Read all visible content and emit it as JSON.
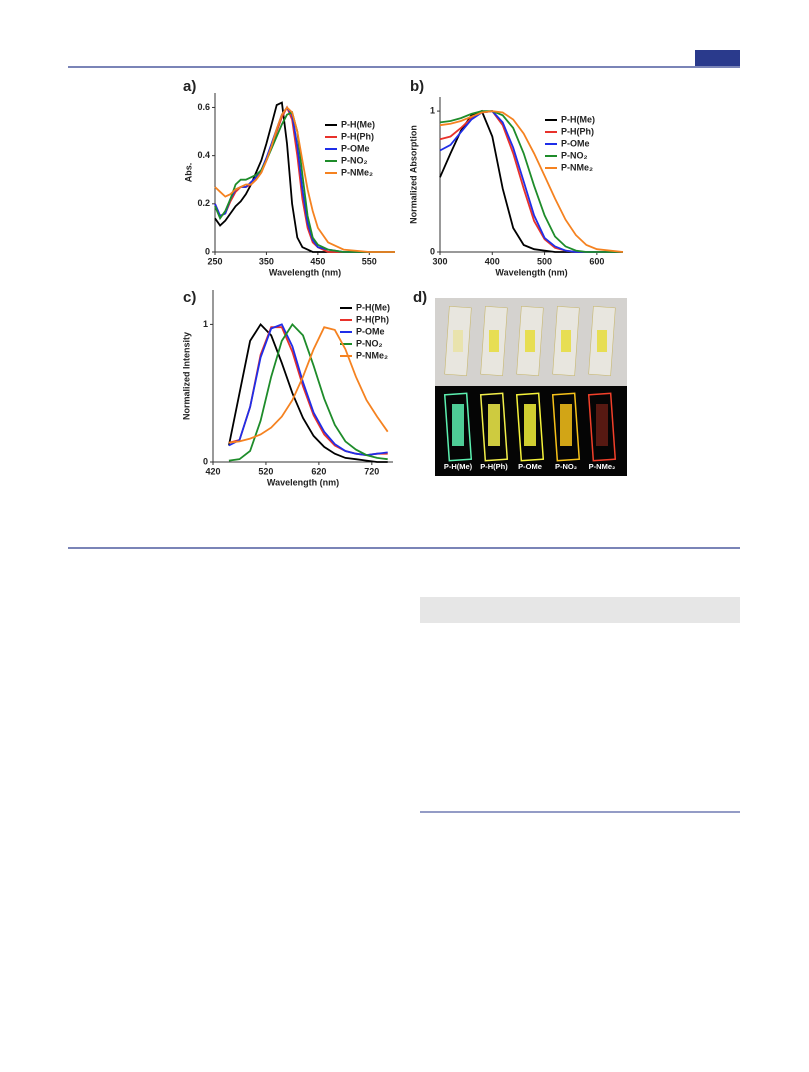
{
  "figure": {
    "panel_labels": [
      "a)",
      "b)",
      "c)",
      "d)"
    ],
    "photo_labels": [
      "P-H(Me)",
      "P-H(Ph)",
      "P-OMe",
      "P-NO₂",
      "P-NMe₂"
    ]
  },
  "chart_data": [
    {
      "type": "line",
      "xlabel": "Wavelength (nm)",
      "ylabel": "Abs.",
      "x": [
        250,
        260,
        270,
        280,
        290,
        300,
        310,
        320,
        330,
        340,
        350,
        360,
        370,
        380,
        390,
        400,
        410,
        420,
        430,
        440,
        450,
        470,
        500,
        550,
        600
      ],
      "xlim": [
        250,
        600
      ],
      "xticks": [
        250,
        350,
        450,
        550
      ],
      "ylim": [
        0,
        0.66
      ],
      "yticks": [
        0,
        0.2,
        0.4,
        0.6
      ],
      "series": [
        {
          "name": "P-H(Me)",
          "color": "#000000",
          "values": [
            0.14,
            0.11,
            0.13,
            0.16,
            0.19,
            0.21,
            0.24,
            0.28,
            0.33,
            0.38,
            0.45,
            0.53,
            0.61,
            0.62,
            0.45,
            0.2,
            0.06,
            0.02,
            0.01,
            0,
            0,
            0,
            0,
            0,
            0
          ]
        },
        {
          "name": "P-H(Ph)",
          "color": "#e8322b",
          "values": [
            0.2,
            0.15,
            0.16,
            0.21,
            0.25,
            0.27,
            0.27,
            0.28,
            0.3,
            0.33,
            0.38,
            0.44,
            0.5,
            0.56,
            0.6,
            0.55,
            0.4,
            0.22,
            0.1,
            0.04,
            0.02,
            0,
            0,
            0,
            0
          ]
        },
        {
          "name": "P-OMe",
          "color": "#1f2ee8",
          "values": [
            0.2,
            0.15,
            0.16,
            0.22,
            0.26,
            0.27,
            0.27,
            0.29,
            0.31,
            0.34,
            0.39,
            0.45,
            0.51,
            0.57,
            0.6,
            0.57,
            0.44,
            0.26,
            0.12,
            0.05,
            0.02,
            0.01,
            0,
            0,
            0
          ]
        },
        {
          "name": "P-NO₂",
          "color": "#1e8c2a",
          "values": [
            0.19,
            0.14,
            0.17,
            0.22,
            0.28,
            0.3,
            0.3,
            0.31,
            0.32,
            0.34,
            0.38,
            0.43,
            0.48,
            0.53,
            0.57,
            0.58,
            0.5,
            0.32,
            0.15,
            0.06,
            0.03,
            0.01,
            0,
            0,
            0
          ]
        },
        {
          "name": "P-NMe₂",
          "color": "#f58220",
          "values": [
            0.27,
            0.25,
            0.23,
            0.24,
            0.26,
            0.27,
            0.28,
            0.28,
            0.3,
            0.33,
            0.38,
            0.44,
            0.51,
            0.57,
            0.6,
            0.58,
            0.5,
            0.38,
            0.26,
            0.17,
            0.1,
            0.04,
            0.01,
            0,
            0
          ]
        }
      ]
    },
    {
      "type": "line",
      "xlabel": "Wavelength (nm)",
      "ylabel": "Normalized Absorption",
      "x": [
        300,
        320,
        340,
        360,
        380,
        400,
        420,
        440,
        460,
        480,
        500,
        520,
        540,
        560,
        580,
        600,
        650
      ],
      "xlim": [
        300,
        650
      ],
      "xticks": [
        300,
        400,
        500,
        600
      ],
      "ylim": [
        0,
        1.1
      ],
      "yticks": [
        0,
        1
      ],
      "series": [
        {
          "name": "P-H(Me)",
          "color": "#000000",
          "values": [
            0.53,
            0.7,
            0.86,
            0.97,
            1.0,
            0.82,
            0.45,
            0.17,
            0.05,
            0.02,
            0.01,
            0,
            0,
            0,
            0,
            0,
            0
          ]
        },
        {
          "name": "P-H(Ph)",
          "color": "#e8322b",
          "values": [
            0.8,
            0.82,
            0.88,
            0.95,
            0.99,
            1.0,
            0.9,
            0.7,
            0.45,
            0.22,
            0.09,
            0.03,
            0.01,
            0,
            0,
            0,
            0
          ]
        },
        {
          "name": "P-OMe",
          "color": "#1f2ee8",
          "values": [
            0.72,
            0.76,
            0.85,
            0.94,
            0.99,
            1.0,
            0.92,
            0.74,
            0.5,
            0.26,
            0.1,
            0.04,
            0.01,
            0,
            0,
            0,
            0
          ]
        },
        {
          "name": "P-NO₂",
          "color": "#1e8c2a",
          "values": [
            0.92,
            0.93,
            0.95,
            0.98,
            1.0,
            1.0,
            0.97,
            0.88,
            0.7,
            0.47,
            0.26,
            0.11,
            0.04,
            0.01,
            0,
            0,
            0
          ]
        },
        {
          "name": "P-NMe₂",
          "color": "#f58220",
          "values": [
            0.9,
            0.91,
            0.93,
            0.96,
            0.99,
            1.0,
            0.99,
            0.94,
            0.84,
            0.7,
            0.54,
            0.38,
            0.23,
            0.12,
            0.05,
            0.02,
            0
          ]
        }
      ]
    },
    {
      "type": "line",
      "xlabel": "Wavelength (nm)",
      "ylabel": "Normalized Intensity",
      "x": [
        450,
        470,
        490,
        510,
        530,
        550,
        570,
        590,
        610,
        630,
        650,
        670,
        690,
        710,
        730,
        750
      ],
      "xlim": [
        420,
        760
      ],
      "xticks": [
        420,
        520,
        620,
        720
      ],
      "ylim": [
        0,
        1.25
      ],
      "yticks": [
        0,
        1
      ],
      "series": [
        {
          "name": "P-H(Me)",
          "color": "#000000",
          "values": [
            0.12,
            0.5,
            0.88,
            1.0,
            0.92,
            0.72,
            0.5,
            0.32,
            0.19,
            0.11,
            0.06,
            0.03,
            0.02,
            0.01,
            0,
            0
          ]
        },
        {
          "name": "P-H(Ph)",
          "color": "#e8322b",
          "values": [
            0.14,
            0.16,
            0.4,
            0.78,
            0.98,
            0.98,
            0.8,
            0.55,
            0.34,
            0.2,
            0.12,
            0.08,
            0.06,
            0.05,
            0.06,
            0.06
          ]
        },
        {
          "name": "P-OMe",
          "color": "#1f2ee8",
          "values": [
            0.12,
            0.16,
            0.4,
            0.76,
            0.97,
            1.0,
            0.84,
            0.58,
            0.36,
            0.22,
            0.13,
            0.08,
            0.06,
            0.05,
            0.06,
            0.07
          ]
        },
        {
          "name": "P-NO₂",
          "color": "#1e8c2a",
          "values": [
            0.01,
            0.02,
            0.08,
            0.3,
            0.62,
            0.88,
            1.0,
            0.92,
            0.7,
            0.46,
            0.27,
            0.15,
            0.09,
            0.05,
            0.03,
            0.02
          ]
        },
        {
          "name": "P-NMe₂",
          "color": "#f58220",
          "values": [
            0.14,
            0.15,
            0.17,
            0.2,
            0.25,
            0.33,
            0.45,
            0.62,
            0.82,
            0.98,
            0.96,
            0.82,
            0.62,
            0.45,
            0.33,
            0.22
          ]
        }
      ]
    }
  ]
}
